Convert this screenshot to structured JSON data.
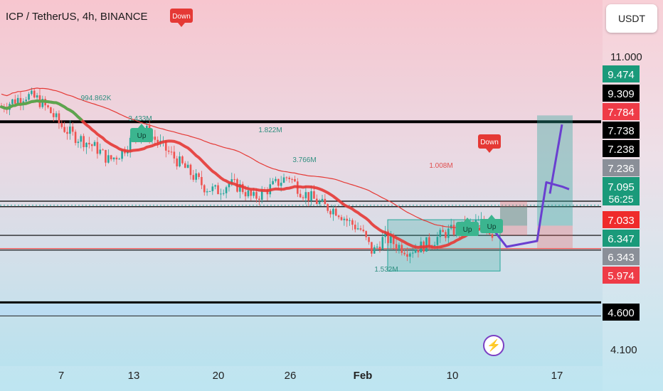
{
  "header": {
    "title": "ICP / TetherUS, 4h, BINANCE",
    "currency_button": "USDT"
  },
  "colors": {
    "bull": "#26a69a",
    "bear": "#ef5350",
    "ma_red": "#e53935",
    "ma_green": "#4caf50",
    "projection": "#6a3fd0",
    "level": "#000000"
  },
  "chart_data": {
    "type": "candlestick",
    "title": "ICP / TetherUS, 4h, BINANCE",
    "price_axis": {
      "ticks": [
        "11.000",
        "4.100"
      ]
    },
    "price_labels": [
      {
        "text": "9.474",
        "price": 9.474,
        "color": "#1a9a7a"
      },
      {
        "text": "9.309",
        "price": 9.309,
        "color": "#000000"
      },
      {
        "text": "7.784",
        "price": 7.784,
        "color": "#ef3b47"
      },
      {
        "text": "7.738",
        "price": 7.738,
        "color": "#000000"
      },
      {
        "text": "7.238",
        "price": 7.238,
        "color": "#000000"
      },
      {
        "text": "7.236",
        "price": 7.236,
        "color": "#8a8f98"
      },
      {
        "text": "7.095",
        "price": 7.095,
        "color": "#1a9a7a",
        "countdown": "56:25"
      },
      {
        "text": "7.033",
        "price": 7.033,
        "color": "#ef2b2b"
      },
      {
        "text": "6.347",
        "price": 6.347,
        "color": "#1a9a7a"
      },
      {
        "text": "6.343",
        "price": 6.343,
        "color": "#8a8f98"
      },
      {
        "text": "5.974",
        "price": 5.974,
        "color": "#ef3b47"
      },
      {
        "text": "4.600",
        "price": 4.6,
        "color": "#000000"
      }
    ],
    "x_ticks": [
      "7",
      "13",
      "20",
      "26",
      "Feb",
      "10",
      "17"
    ],
    "volume_labels": [
      "994.862K",
      "3.433M",
      "1.822M",
      "3.766M",
      "1.008M",
      "1.532M"
    ],
    "signals": [
      {
        "text": "Down",
        "kind": "sell"
      },
      {
        "text": "Up",
        "kind": "buy"
      },
      {
        "text": "Down",
        "kind": "sell"
      },
      {
        "text": "Up",
        "kind": "buy"
      },
      {
        "text": "Up",
        "kind": "buy"
      }
    ],
    "horizontal_levels": [
      9.309,
      7.238,
      7.095,
      6.347,
      6.343,
      4.6
    ],
    "close_path": [
      9.7,
      9.85,
      10.0,
      9.9,
      9.6,
      9.2,
      8.95,
      8.8,
      8.6,
      8.3,
      8.5,
      8.9,
      9.1,
      8.8,
      8.5,
      8.2,
      7.9,
      7.6,
      7.5,
      7.7,
      7.6,
      7.3,
      7.5,
      7.7,
      7.9,
      7.5,
      7.3,
      7.1,
      7.0,
      6.7,
      6.5,
      5.9,
      6.3,
      6.1,
      5.95,
      6.05,
      6.2,
      6.4,
      6.5,
      6.6,
      6.7,
      6.4
    ],
    "projection": [
      6.64,
      6.58,
      6.05,
      6.2,
      7.73,
      7.62,
      7.55
    ]
  }
}
